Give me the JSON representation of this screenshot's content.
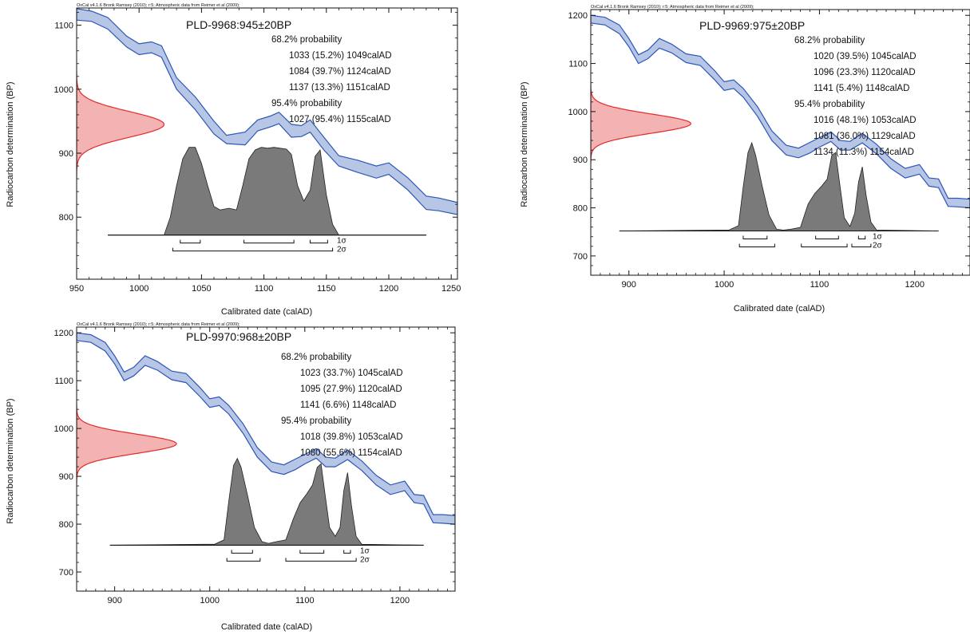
{
  "colors": {
    "band_fill": "#b8c6e6",
    "band_line": "#2c56b8",
    "prior_fill": "#f4b3b3",
    "prior_line": "#e32b2b",
    "posterior_fill": "#7a7a7a"
  },
  "common": {
    "credit": "OxCal v4.1.6 Bronk Ramsey (2010); r:5; Atmospheric data from Reimer et al (2009);",
    "ylabel": "Radiocarbon determination (BP)",
    "xlabel": "Calibrated date (calAD)",
    "sigma1_label": "1σ",
    "sigma2_label": "2σ"
  },
  "chart_data": [
    {
      "type": "area",
      "title": "PLD-9968:945±20BP",
      "xlim": [
        950,
        1255
      ],
      "ylim": [
        703,
        1127
      ],
      "xticks": [
        950,
        1000,
        1050,
        1100,
        1150,
        1200,
        1250
      ],
      "yticks": [
        800,
        900,
        1000,
        1100
      ],
      "measurement": {
        "mean": 945,
        "error": 20
      },
      "probability_lines": [
        {
          "text": "68.2% probability",
          "indent": false
        },
        {
          "text": "1033 (15.2%) 1049calAD",
          "indent": true
        },
        {
          "text": "1084 (39.7%) 1124calAD",
          "indent": true
        },
        {
          "text": "1137 (13.3%) 1151calAD",
          "indent": true
        },
        {
          "text": "95.4% probability",
          "indent": false
        },
        {
          "text": "1027 (95.4%) 1155calAD",
          "indent": true
        }
      ],
      "calibration_curve": {
        "x": [
          950,
          962,
          975,
          990,
          1000,
          1010,
          1018,
          1030,
          1045,
          1060,
          1070,
          1085,
          1095,
          1105,
          1112,
          1122,
          1130,
          1137,
          1148,
          1160,
          1175,
          1190,
          1200,
          1215,
          1230,
          1240,
          1255
        ],
        "upper": [
          1126,
          1122,
          1112,
          1083,
          1071,
          1074,
          1068,
          1018,
          988,
          950,
          928,
          933,
          952,
          958,
          964,
          945,
          943,
          952,
          925,
          896,
          889,
          880,
          885,
          862,
          833,
          830,
          823
        ],
        "lower": [
          1108,
          1106,
          1094,
          1066,
          1054,
          1057,
          1050,
          1000,
          968,
          930,
          915,
          913,
          935,
          941,
          946,
          925,
          926,
          933,
          905,
          880,
          870,
          861,
          867,
          843,
          812,
          810,
          804
        ]
      },
      "posterior": {
        "baseline_bp": 772,
        "x": [
          975,
          1020,
          1025,
          1030,
          1035,
          1040,
          1045,
          1050,
          1055,
          1060,
          1065,
          1072,
          1078,
          1083,
          1088,
          1093,
          1098,
          1103,
          1108,
          1113,
          1118,
          1122,
          1127,
          1132,
          1137,
          1141,
          1145,
          1150,
          1155,
          1160,
          1230
        ],
        "y": [
          0,
          0,
          0.2,
          0.55,
          0.85,
          0.98,
          0.98,
          0.8,
          0.55,
          0.32,
          0.28,
          0.3,
          0.28,
          0.55,
          0.85,
          0.95,
          0.98,
          0.97,
          0.98,
          0.97,
          0.96,
          0.9,
          0.55,
          0.38,
          0.5,
          0.88,
          0.95,
          0.45,
          0.12,
          0,
          0
        ],
        "height_bp": 140
      },
      "prior": {
        "amplitude_years": 70
      },
      "ranges_1sigma": [
        [
          1033,
          1049
        ],
        [
          1084,
          1124
        ],
        [
          1137,
          1151
        ]
      ],
      "ranges_2sigma": [
        [
          1027,
          1155
        ]
      ]
    },
    {
      "type": "area",
      "title": "PLD-9969:975±20BP",
      "xlim": [
        860,
        1258
      ],
      "ylim": [
        660,
        1212
      ],
      "xticks": [
        900,
        1000,
        1100,
        1200
      ],
      "yticks": [
        700,
        800,
        900,
        1000,
        1100,
        1200
      ],
      "measurement": {
        "mean": 975,
        "error": 20
      },
      "probability_lines": [
        {
          "text": "68.2% probability",
          "indent": false
        },
        {
          "text": "1020 (39.5%) 1045calAD",
          "indent": true
        },
        {
          "text": "1096 (23.3%) 1120calAD",
          "indent": true
        },
        {
          "text": "1141 (5.4%) 1148calAD",
          "indent": true
        },
        {
          "text": "95.4% probability",
          "indent": false
        },
        {
          "text": "1016 (48.1%) 1053calAD",
          "indent": true
        },
        {
          "text": "1081 (36.0%) 1129calAD",
          "indent": true
        },
        {
          "text": "1134 (11.3%) 1154calAD",
          "indent": true
        }
      ],
      "calibration_curve": {
        "x": [
          860,
          875,
          890,
          900,
          910,
          920,
          932,
          945,
          960,
          975,
          990,
          1000,
          1010,
          1020,
          1035,
          1050,
          1065,
          1078,
          1090,
          1100,
          1112,
          1122,
          1132,
          1145,
          1160,
          1175,
          1190,
          1205,
          1215,
          1225,
          1235,
          1245,
          1258
        ],
        "upper": [
          1200,
          1196,
          1180,
          1152,
          1118,
          1128,
          1152,
          1140,
          1120,
          1115,
          1085,
          1062,
          1066,
          1048,
          1010,
          960,
          930,
          924,
          936,
          946,
          958,
          940,
          938,
          955,
          932,
          902,
          882,
          890,
          862,
          860,
          820,
          820,
          818
        ],
        "lower": [
          1184,
          1180,
          1162,
          1135,
          1100,
          1110,
          1132,
          1122,
          1102,
          1096,
          1066,
          1044,
          1048,
          1030,
          990,
          940,
          910,
          904,
          914,
          926,
          938,
          920,
          920,
          935,
          912,
          882,
          862,
          870,
          845,
          842,
          803,
          802,
          800
        ]
      },
      "posterior": {
        "baseline_bp": 752,
        "x": [
          890,
          995,
          1005,
          1015,
          1020,
          1025,
          1029,
          1033,
          1040,
          1047,
          1055,
          1062,
          1070,
          1080,
          1088,
          1095,
          1102,
          1108,
          1113,
          1117,
          1121,
          1126,
          1132,
          1137,
          1141,
          1145,
          1149,
          1154,
          1160,
          1225
        ],
        "y": [
          0,
          0.01,
          0.01,
          0.06,
          0.5,
          0.88,
          0.99,
          0.85,
          0.5,
          0.18,
          0.02,
          0.01,
          0.02,
          0.04,
          0.3,
          0.42,
          0.5,
          0.58,
          0.85,
          0.88,
          0.55,
          0.15,
          0.05,
          0.2,
          0.55,
          0.72,
          0.4,
          0.1,
          0.01,
          0
        ],
        "height_bp": 185
      },
      "prior": {
        "amplitude_years": 105
      },
      "ranges_1sigma": [
        [
          1020,
          1045
        ],
        [
          1096,
          1120
        ],
        [
          1141,
          1148
        ]
      ],
      "ranges_2sigma": [
        [
          1016,
          1053
        ],
        [
          1081,
          1129
        ],
        [
          1134,
          1154
        ]
      ]
    },
    {
      "type": "area",
      "title": "PLD-9970:968±20BP",
      "xlim": [
        860,
        1258
      ],
      "ylim": [
        660,
        1212
      ],
      "xticks": [
        900,
        1000,
        1100,
        1200
      ],
      "yticks": [
        700,
        800,
        900,
        1000,
        1100,
        1200
      ],
      "measurement": {
        "mean": 968,
        "error": 20
      },
      "probability_lines": [
        {
          "text": "68.2% probability",
          "indent": false
        },
        {
          "text": "1023 (33.7%) 1045calAD",
          "indent": true
        },
        {
          "text": "1095 (27.9%) 1120calAD",
          "indent": true
        },
        {
          "text": "1141 (6.6%) 1148calAD",
          "indent": true
        },
        {
          "text": "95.4% probability",
          "indent": false
        },
        {
          "text": "1018 (39.8%) 1053calAD",
          "indent": true
        },
        {
          "text": "1080 (55.6%) 1154calAD",
          "indent": true
        }
      ],
      "calibration_curve": {
        "x": [
          860,
          875,
          890,
          900,
          910,
          920,
          932,
          945,
          960,
          975,
          990,
          1000,
          1010,
          1020,
          1035,
          1050,
          1065,
          1078,
          1090,
          1100,
          1112,
          1122,
          1132,
          1145,
          1160,
          1175,
          1190,
          1205,
          1215,
          1225,
          1235,
          1245,
          1258
        ],
        "upper": [
          1200,
          1196,
          1180,
          1152,
          1118,
          1128,
          1152,
          1140,
          1120,
          1115,
          1085,
          1062,
          1066,
          1048,
          1010,
          960,
          930,
          924,
          936,
          946,
          958,
          940,
          938,
          955,
          932,
          902,
          882,
          890,
          862,
          860,
          820,
          820,
          818
        ],
        "lower": [
          1184,
          1180,
          1162,
          1135,
          1100,
          1110,
          1132,
          1122,
          1102,
          1096,
          1066,
          1044,
          1048,
          1030,
          990,
          940,
          910,
          904,
          914,
          926,
          938,
          920,
          920,
          935,
          912,
          882,
          862,
          870,
          845,
          842,
          803,
          802,
          800
        ]
      },
      "posterior": {
        "baseline_bp": 756,
        "x": [
          895,
          995,
          1005,
          1015,
          1020,
          1025,
          1029,
          1033,
          1040,
          1047,
          1055,
          1062,
          1070,
          1080,
          1088,
          1095,
          1102,
          1108,
          1113,
          1117,
          1121,
          1126,
          1132,
          1137,
          1141,
          1145,
          1149,
          1154,
          1160,
          1225
        ],
        "y": [
          0,
          0.01,
          0.01,
          0.06,
          0.5,
          0.9,
          0.98,
          0.88,
          0.55,
          0.2,
          0.04,
          0.02,
          0.04,
          0.06,
          0.3,
          0.48,
          0.58,
          0.68,
          0.88,
          0.92,
          0.6,
          0.2,
          0.1,
          0.2,
          0.62,
          0.82,
          0.45,
          0.1,
          0.01,
          0
        ],
        "height_bp": 185
      },
      "prior": {
        "amplitude_years": 105
      },
      "ranges_1sigma": [
        [
          1023,
          1045
        ],
        [
          1095,
          1120
        ],
        [
          1141,
          1148
        ]
      ],
      "ranges_2sigma": [
        [
          1018,
          1053
        ],
        [
          1080,
          1154
        ]
      ]
    }
  ]
}
